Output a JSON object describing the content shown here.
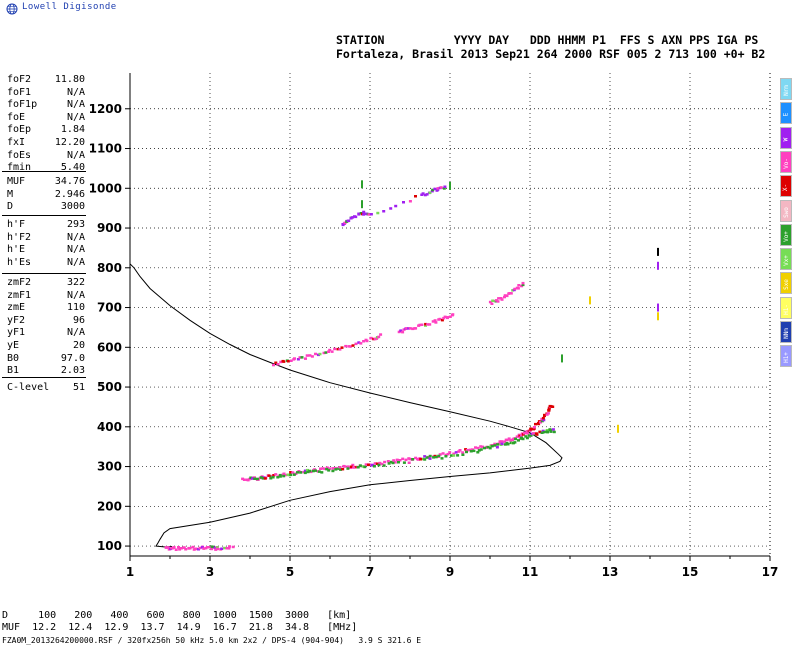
{
  "brand": "Lowell Digisonde",
  "header": {
    "line1": "STATION          YYYY DAY   DDD HHMM P1  FFS S AXN PPS IGA PS",
    "line2": "Fortaleza, Brasil 2013 Sep21 264 2000 RSF 005 2 713 100 +0+ B2"
  },
  "sidebar": {
    "group1": [
      {
        "name": "foF2",
        "value": "11.80"
      },
      {
        "name": "foF1",
        "value": "N/A"
      },
      {
        "name": "foF1p",
        "value": "N/A"
      },
      {
        "name": "foE",
        "value": "N/A"
      },
      {
        "name": "foEp",
        "value": "1.84"
      },
      {
        "name": "fxI",
        "value": "12.20"
      },
      {
        "name": "foEs",
        "value": "N/A"
      },
      {
        "name": "fmin",
        "value": "5.40"
      }
    ],
    "group2": [
      {
        "name": "MUF",
        "value": "34.76"
      },
      {
        "name": "M",
        "value": "2.946"
      },
      {
        "name": "D",
        "value": "3000"
      }
    ],
    "group3": [
      {
        "name": "h'F",
        "value": "293"
      },
      {
        "name": "h'F2",
        "value": "N/A"
      },
      {
        "name": "h'E",
        "value": "N/A"
      },
      {
        "name": "h'Es",
        "value": "N/A"
      }
    ],
    "group4": [
      {
        "name": "zmF2",
        "value": "322"
      },
      {
        "name": "zmF1",
        "value": "N/A"
      },
      {
        "name": "zmE",
        "value": "110"
      },
      {
        "name": "yF2",
        "value": "96"
      },
      {
        "name": "yF1",
        "value": "N/A"
      },
      {
        "name": "yE",
        "value": "20"
      },
      {
        "name": "B0",
        "value": "97.0"
      },
      {
        "name": "B1",
        "value": "2.03"
      }
    ],
    "group5": [
      {
        "name": "C-level",
        "value": "51"
      }
    ]
  },
  "modes": [
    {
      "label": "Nrm",
      "color": "#7fd8f2"
    },
    {
      "label": "E",
      "color": "#1e90ff"
    },
    {
      "label": "W",
      "color": "#a020f0"
    },
    {
      "label": "Vo-",
      "color": "#ff40c0"
    },
    {
      "label": "X-",
      "color": "#dd0000"
    },
    {
      "label": "Swo",
      "color": "#f3b7c3"
    },
    {
      "label": "Vo+",
      "color": "#2ca02c"
    },
    {
      "label": "Vx+",
      "color": "#77dd55"
    },
    {
      "label": "Sxe",
      "color": "#f0d000"
    },
    {
      "label": "H1-",
      "color": "#ffff60"
    },
    {
      "label": "NNm",
      "color": "#1f3fb0"
    },
    {
      "label": "H1+",
      "color": "#9999ff"
    }
  ],
  "footer": {
    "line1": "D     100   200   400   600   800  1000  1500  3000   [km]",
    "line2": "MUF  12.2  12.4  12.9  13.7  14.9  16.7  21.8  34.8   [MHz]"
  },
  "filename": "FZA0M_2013264200000.RSF / 320fx256h 50 kHz 5.0 km 2x2 / DPS-4 (904-904)   3.9 S 321.6 E",
  "chart_data": {
    "type": "scatter",
    "x_ticks": [
      "1",
      "3",
      "5",
      "7",
      "9",
      "11",
      "13",
      "15",
      "17"
    ],
    "y_ticks": [
      "100",
      "200",
      "300",
      "400",
      "500",
      "600",
      "700",
      "800",
      "900",
      "1000",
      "1100",
      "1200"
    ],
    "xlim": [
      1,
      17
    ],
    "ylim": [
      75,
      1290
    ],
    "grid": true,
    "profile": [
      [
        1.0,
        810
      ],
      [
        1.1,
        800
      ],
      [
        1.25,
        778
      ],
      [
        1.5,
        748
      ],
      [
        2.0,
        705
      ],
      [
        2.5,
        668
      ],
      [
        3.0,
        635
      ],
      [
        3.5,
        607
      ],
      [
        4.0,
        582
      ],
      [
        4.5,
        562
      ],
      [
        5.0,
        543
      ],
      [
        6.0,
        511
      ],
      [
        7.0,
        485
      ],
      [
        8.0,
        461
      ],
      [
        9.0,
        438
      ],
      [
        10.0,
        414
      ],
      [
        10.5,
        400
      ],
      [
        11.0,
        385
      ],
      [
        11.4,
        360
      ],
      [
        11.7,
        332
      ],
      [
        11.8,
        322
      ],
      [
        11.75,
        313
      ],
      [
        11.5,
        303
      ],
      [
        11.0,
        296
      ],
      [
        10.0,
        284
      ],
      [
        9.0,
        275
      ],
      [
        8.0,
        265
      ],
      [
        7.0,
        254
      ],
      [
        6.0,
        237
      ],
      [
        5.0,
        215
      ],
      [
        4.0,
        183
      ],
      [
        3.0,
        160
      ],
      [
        2.0,
        144
      ],
      [
        1.85,
        133
      ],
      [
        1.75,
        117
      ],
      [
        1.7,
        108
      ],
      [
        1.65,
        100
      ],
      [
        1.85,
        98
      ],
      [
        2.05,
        99
      ]
    ],
    "traces": [
      {
        "name": "O",
        "color": "#ff40c0",
        "points": [
          [
            3.8,
            268
          ],
          [
            4.2,
            273
          ],
          [
            4.6,
            278
          ],
          [
            5.0,
            284
          ],
          [
            5.5,
            290
          ],
          [
            6.0,
            296
          ],
          [
            6.5,
            302
          ],
          [
            7.0,
            308
          ],
          [
            7.5,
            314
          ],
          [
            8.0,
            320
          ],
          [
            8.5,
            327
          ],
          [
            9.0,
            335
          ],
          [
            9.5,
            344
          ],
          [
            10.0,
            355
          ],
          [
            10.4,
            366
          ],
          [
            10.7,
            378
          ],
          [
            10.9,
            388
          ],
          [
            11.1,
            400
          ],
          [
            11.3,
            420
          ],
          [
            11.45,
            440
          ],
          [
            11.55,
            458
          ]
        ]
      },
      {
        "name": "X",
        "color": "#2ca02c",
        "points": [
          [
            4.0,
            271
          ],
          [
            4.5,
            276
          ],
          [
            5.2,
            285
          ],
          [
            5.8,
            291
          ],
          [
            6.5,
            299
          ],
          [
            7.2,
            306
          ],
          [
            8.2,
            318
          ],
          [
            8.8,
            326
          ],
          [
            9.6,
            340
          ],
          [
            10.1,
            352
          ],
          [
            10.5,
            362
          ],
          [
            10.8,
            373
          ],
          [
            11.1,
            383
          ],
          [
            11.4,
            390
          ],
          [
            11.6,
            393
          ]
        ]
      },
      {
        "name": "O2",
        "color": "#ff40c0",
        "points": [
          [
            4.6,
            560
          ],
          [
            5.0,
            568
          ],
          [
            5.5,
            580
          ],
          [
            6.0,
            592
          ],
          [
            6.5,
            606
          ],
          [
            7.0,
            622
          ],
          [
            7.3,
            632
          ]
        ]
      },
      {
        "name": "O2b",
        "color": "#ff40c0",
        "points": [
          [
            7.7,
            640
          ],
          [
            8.0,
            648
          ],
          [
            8.4,
            660
          ],
          [
            8.8,
            672
          ],
          [
            9.1,
            685
          ]
        ]
      },
      {
        "name": "O3",
        "color": "#ff40c0",
        "points": [
          [
            10.0,
            712
          ],
          [
            10.3,
            725
          ],
          [
            10.6,
            745
          ],
          [
            10.85,
            765
          ]
        ]
      },
      {
        "name": "Es",
        "color": "#ff40c0",
        "points": [
          [
            1.9,
            98
          ],
          [
            2.1,
            96
          ],
          [
            2.4,
            97
          ],
          [
            2.7,
            96
          ],
          [
            3.0,
            97
          ],
          [
            3.2,
            96
          ],
          [
            3.6,
            99
          ]
        ]
      },
      {
        "name": "O4",
        "color": "#a020f0",
        "points": [
          [
            6.3,
            912
          ],
          [
            6.5,
            925
          ],
          [
            6.8,
            940
          ],
          [
            7.0,
            935
          ],
          [
            8.3,
            985
          ],
          [
            8.6,
            998
          ],
          [
            8.9,
            1004
          ]
        ]
      }
    ],
    "markers": [
      {
        "x": 14.2,
        "y": 840,
        "color": "#000000"
      },
      {
        "x": 14.2,
        "y": 805,
        "color": "#a020f0"
      },
      {
        "x": 14.2,
        "y": 700,
        "color": "#a020f0"
      },
      {
        "x": 14.2,
        "y": 678,
        "color": "#f0d000"
      },
      {
        "x": 13.2,
        "y": 395,
        "color": "#f0d000"
      },
      {
        "x": 12.5,
        "y": 718,
        "color": "#f0d000"
      },
      {
        "x": 11.8,
        "y": 572,
        "color": "#2ca02c"
      },
      {
        "x": 6.8,
        "y": 1010,
        "color": "#2ca02c"
      },
      {
        "x": 6.8,
        "y": 960,
        "color": "#2ca02c"
      },
      {
        "x": 9.0,
        "y": 1006,
        "color": "#2ca02c"
      }
    ]
  }
}
